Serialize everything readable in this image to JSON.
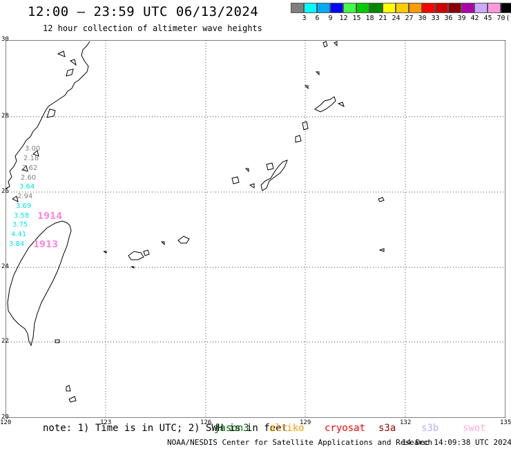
{
  "title": "12:00 – 23:59 UTC 06/13/2024",
  "subtitle": "12 hour collection of altimeter wave heights",
  "legend": {
    "colors": [
      "#7f7f7f",
      "#00ffff",
      "#00aaff",
      "#0000ff",
      "#44ff44",
      "#00cc00",
      "#008800",
      "#ffff00",
      "#ffcc00",
      "#ff9900",
      "#ff0000",
      "#cc0000",
      "#880000",
      "#aa00aa",
      "#ccaaff",
      "#ff99dd",
      "#000000"
    ],
    "labels": [
      "3",
      "6",
      "9",
      "12",
      "15",
      "18",
      "21",
      "24",
      "27",
      "30",
      "33",
      "36",
      "39",
      "42",
      "45",
      "70",
      "(ft)"
    ]
  },
  "axes": {
    "lon_ticks": [
      "120",
      "123",
      "126",
      "129",
      "132",
      "135"
    ],
    "lat_ticks": [
      "30",
      "28",
      "26",
      "24",
      "22",
      "20"
    ]
  },
  "observations": [
    {
      "value": "3.00",
      "color": "#7f7f7f"
    },
    {
      "value": "2.18",
      "color": "#7f7f7f"
    },
    {
      "value": "2.62",
      "color": "#7f7f7f"
    },
    {
      "value": "2.60",
      "color": "#7f7f7f"
    },
    {
      "value": "3.64",
      "color": "#00e5e5"
    },
    {
      "value": "2.94",
      "color": "#7f7f7f"
    },
    {
      "value": "3.69",
      "color": "#00e5e5"
    },
    {
      "value": "3.58",
      "color": "#00e5e5"
    },
    {
      "value": "3.75",
      "color": "#00e5e5"
    },
    {
      "value": "4.41",
      "color": "#00e5e5"
    },
    {
      "value": "3.84",
      "color": "#00e5e5"
    }
  ],
  "passes": [
    {
      "value": "1914",
      "color": "#ff88dd"
    },
    {
      "value": "1913",
      "color": "#ff88dd"
    }
  ],
  "note": "note: 1) Time is in UTC; 2) SWH is in feet",
  "satellites": [
    {
      "name": "jason3",
      "color": "#006600"
    },
    {
      "name": "altiko",
      "color": "#ff9900"
    },
    {
      "name": "cryosat",
      "color": "#ff0000"
    },
    {
      "name": "s3a",
      "color": "#990000"
    },
    {
      "name": "s3b",
      "color": "#bbaaff"
    },
    {
      "name": "swot",
      "color": "#ffaadd"
    }
  ],
  "footer": "NOAA/NESDIS Center for Satellite Applications and Research",
  "timestamp": "14 Dec 14:09:38 UTC 2024"
}
